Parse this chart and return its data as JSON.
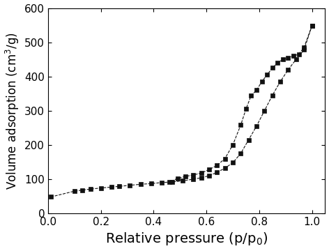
{
  "adsorption_x": [
    0.01,
    0.1,
    0.13,
    0.16,
    0.2,
    0.24,
    0.27,
    0.31,
    0.35,
    0.39,
    0.43,
    0.47,
    0.51,
    0.55,
    0.58,
    0.61,
    0.64,
    0.67,
    0.7,
    0.73,
    0.76,
    0.79,
    0.82,
    0.85,
    0.88,
    0.91,
    0.94,
    0.97,
    1.0
  ],
  "adsorption_y": [
    48,
    65,
    68,
    71,
    74,
    77,
    79,
    82,
    85,
    87,
    90,
    92,
    95,
    100,
    104,
    110,
    120,
    132,
    148,
    175,
    215,
    255,
    300,
    345,
    385,
    420,
    450,
    478,
    548
  ],
  "desorption_x": [
    1.0,
    0.97,
    0.95,
    0.93,
    0.91,
    0.89,
    0.87,
    0.85,
    0.83,
    0.81,
    0.79,
    0.77,
    0.75,
    0.73,
    0.7,
    0.67,
    0.64,
    0.61,
    0.58,
    0.55,
    0.52,
    0.49,
    0.46
  ],
  "desorption_y": [
    548,
    485,
    465,
    460,
    455,
    450,
    440,
    425,
    405,
    385,
    360,
    345,
    305,
    258,
    200,
    160,
    140,
    128,
    118,
    112,
    108,
    102,
    92
  ],
  "xlabel": "Relative pressure (p/p$_0$)",
  "ylabel": "Volume adsorption (cm$^3$/g)",
  "xlim": [
    0.0,
    1.05
  ],
  "ylim": [
    0,
    600
  ],
  "xticks": [
    0.0,
    0.2,
    0.4,
    0.6,
    0.8,
    1.0
  ],
  "yticks": [
    0,
    100,
    200,
    300,
    400,
    500,
    600
  ],
  "marker": "s",
  "markersize": 5,
  "linewidth": 0.8,
  "color": "#111111",
  "background_color": "#ffffff",
  "xlabel_fontsize": 14,
  "ylabel_fontsize": 12,
  "tick_fontsize": 11
}
